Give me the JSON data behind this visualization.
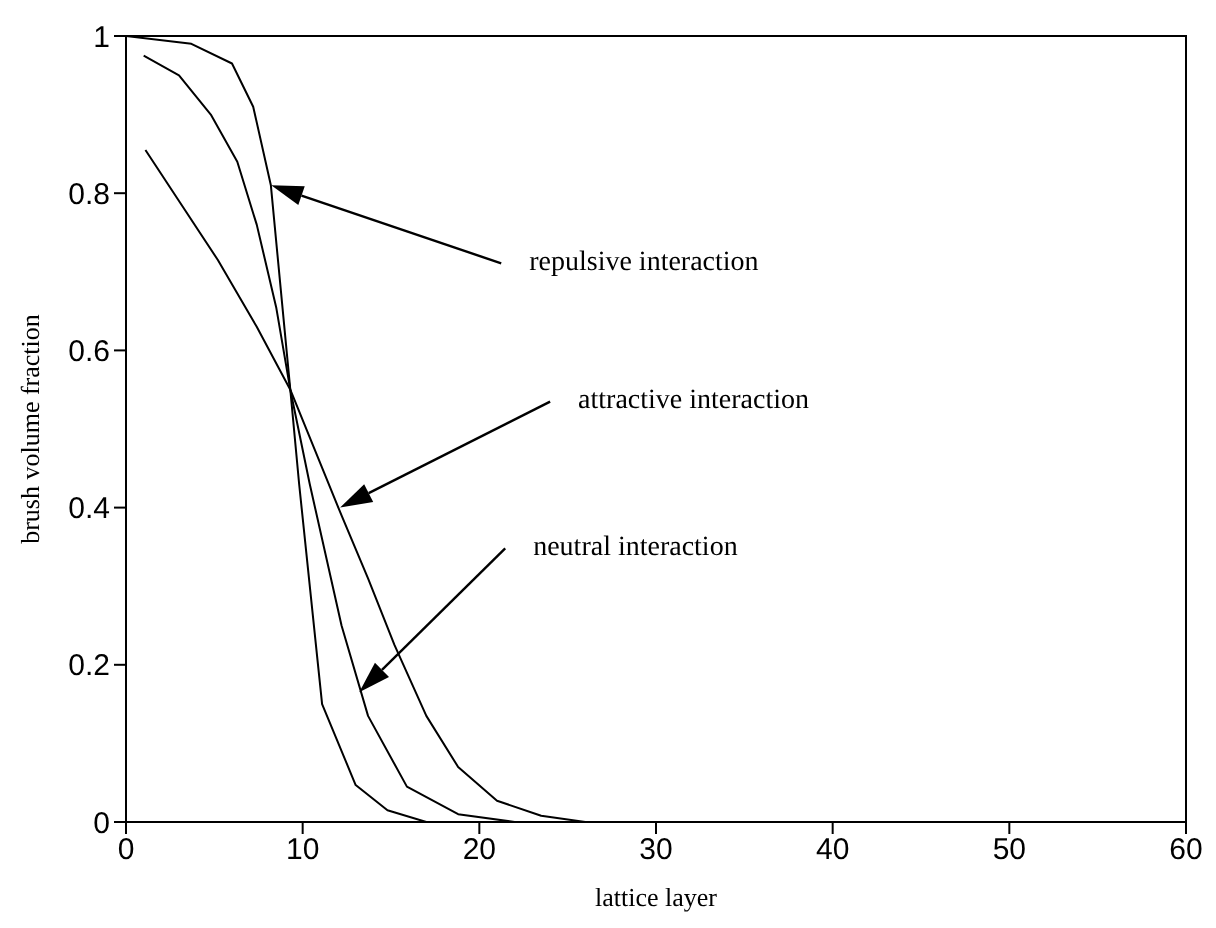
{
  "chart_data": {
    "type": "line",
    "xlabel": "lattice layer",
    "ylabel": "brush volume fraction",
    "xlim": [
      0,
      60
    ],
    "xticks": [
      0,
      10,
      20,
      30,
      40,
      50,
      60
    ],
    "ylim": [
      0,
      1
    ],
    "yticks": [
      0,
      0.2,
      0.4,
      0.6,
      0.8,
      1
    ],
    "grid": false,
    "marker": "none",
    "line_style": "solid",
    "series": [
      {
        "color": "#000000",
        "x": [
          0,
          3.7,
          6,
          7.2,
          8.2,
          9.3,
          9.8,
          11.1,
          13,
          14.8,
          17,
          60
        ],
        "values": [
          1,
          0.99,
          0.965,
          0.91,
          0.81,
          0.55,
          0.43,
          0.15,
          0.047,
          0.015,
          0,
          0
        ]
      },
      {
        "color": "#000000",
        "x": [
          1,
          3,
          4.8,
          6.3,
          7.4,
          8.5,
          9.3,
          10.4,
          12.2,
          13.7,
          15.9,
          18.8,
          22,
          60
        ],
        "values": [
          0.975,
          0.95,
          0.9,
          0.84,
          0.76,
          0.655,
          0.55,
          0.43,
          0.25,
          0.135,
          0.045,
          0.01,
          0,
          0
        ]
      },
      {
        "color": "#000000",
        "x": [
          1.1,
          3,
          5.2,
          7.4,
          9.3,
          12.2,
          13.7,
          15.2,
          17,
          18.8,
          21,
          23.5,
          26,
          60
        ],
        "values": [
          0.855,
          0.79,
          0.715,
          0.63,
          0.55,
          0.39,
          0.31,
          0.225,
          0.135,
          0.07,
          0.027,
          0.008,
          0,
          0
        ]
      }
    ],
    "annotations": [
      "repulsive interaction",
      "attractive interaction",
      "neutral interaction"
    ]
  }
}
